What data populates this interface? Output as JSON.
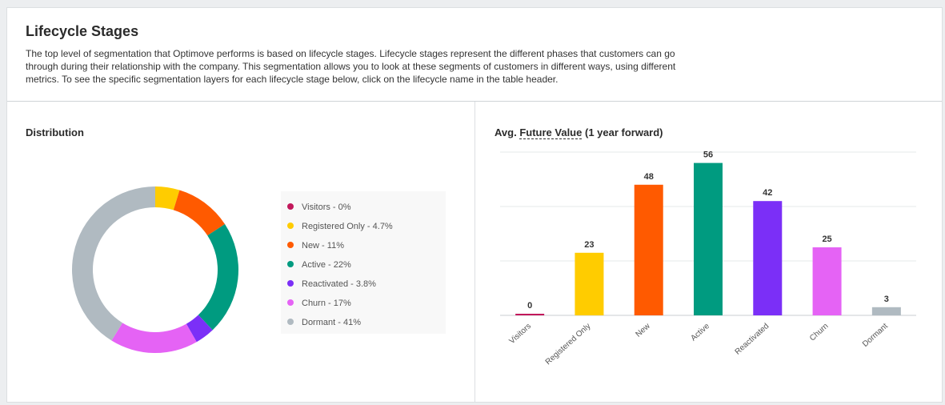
{
  "header": {
    "title": "Lifecycle Stages",
    "description": "The top level of segmentation that Optimove performs is based on lifecycle stages. Lifecycle stages represent the different phases that customers can go through during their relationship with the company. This segmentation allows you to look at these segments of customers in different ways, using different metrics. To see the specific segmentation layers for each lifecycle stage below, click on the lifecycle name in the table header."
  },
  "distribution": {
    "title": "Distribution",
    "legend": [
      {
        "label": "Visitors - 0%",
        "color": "#c2185b"
      },
      {
        "label": "Registered Only - 4.7%",
        "color": "#ffcc00"
      },
      {
        "label": "New - 11%",
        "color": "#ff5a00"
      },
      {
        "label": "Active - 22%",
        "color": "#009b80"
      },
      {
        "label": "Reactivated - 3.8%",
        "color": "#7b2ff7"
      },
      {
        "label": "Churn - 17%",
        "color": "#e563f5"
      },
      {
        "label": "Dormant - 41%",
        "color": "#b0bac1"
      }
    ]
  },
  "future_value": {
    "title_prefix": "Avg.",
    "title_link": "Future Value",
    "title_suffix": "(1 year forward)"
  },
  "chart_data": [
    {
      "type": "pie",
      "categories": [
        "Visitors",
        "Registered Only",
        "New",
        "Active",
        "Reactivated",
        "Churn",
        "Dormant"
      ],
      "values": [
        0,
        4.7,
        11,
        22,
        3.8,
        17,
        41
      ],
      "colors": [
        "#c2185b",
        "#ffcc00",
        "#ff5a00",
        "#009b80",
        "#7b2ff7",
        "#e563f5",
        "#b0bac1"
      ]
    },
    {
      "type": "bar",
      "categories": [
        "Visitors",
        "Registered Only",
        "New",
        "Active",
        "Reactivated",
        "Churn",
        "Dormant"
      ],
      "values": [
        0,
        23,
        48,
        56,
        42,
        25,
        3
      ],
      "colors": [
        "#c2185b",
        "#ffcc00",
        "#ff5a00",
        "#009b80",
        "#7b2ff7",
        "#e563f5",
        "#b0bac1"
      ],
      "ylim": [
        0,
        60
      ],
      "grid": true
    }
  ]
}
